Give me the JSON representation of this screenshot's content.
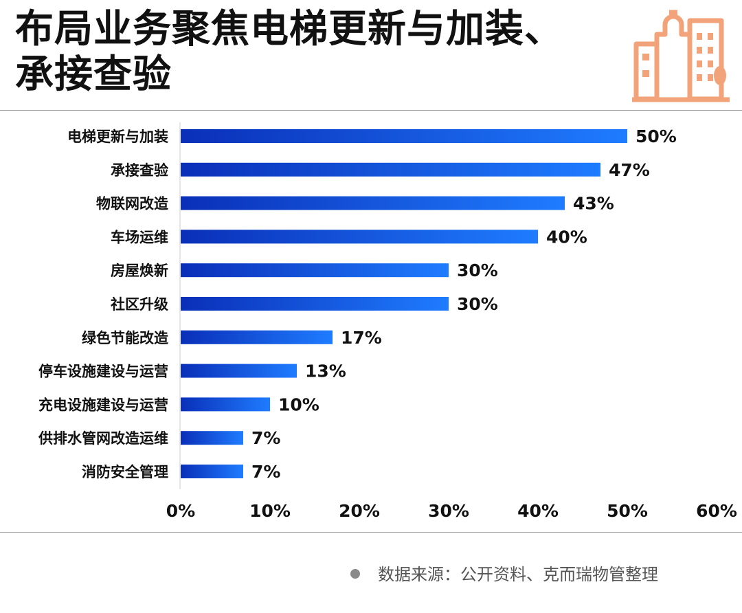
{
  "title": {
    "line1": "布局业务聚焦电梯更新与加装、",
    "line2": "承接查验"
  },
  "logo": {
    "icon": "buildings-icon",
    "color": "#f2a37a"
  },
  "colors": {
    "bar_start": "#0a2fb8",
    "bar_end": "#1f7cff",
    "text": "#111111",
    "axis": "#cccccc"
  },
  "chart_data": {
    "type": "bar",
    "orientation": "horizontal",
    "categories": [
      "电梯更新与加装",
      "承接查验",
      "物联网改造",
      "车场运维",
      "房屋焕新",
      "社区升级",
      "绿色节能改造",
      "停车设施建设与运营",
      "充电设施建设与运营",
      "供排水管网改造运维",
      "消防安全管理"
    ],
    "values": [
      50,
      47,
      43,
      40,
      30,
      30,
      17,
      13,
      10,
      7,
      7
    ],
    "value_labels": [
      "50%",
      "47%",
      "43%",
      "40%",
      "30%",
      "30%",
      "17%",
      "13%",
      "10%",
      "7%",
      "7%"
    ],
    "xlim": [
      0,
      60
    ],
    "xticks": [
      "0%",
      "10%",
      "20%",
      "30%",
      "40%",
      "50%",
      "60%"
    ],
    "grid": false
  },
  "source": {
    "text": "数据来源：公开资料、克而瑞物管整理"
  }
}
